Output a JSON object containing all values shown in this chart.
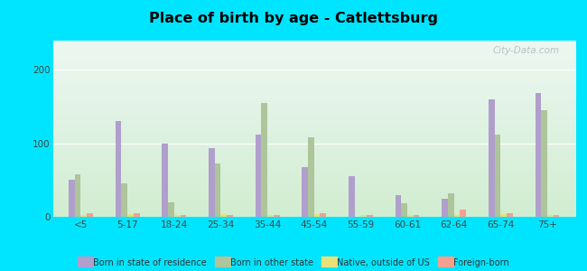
{
  "title": "Place of birth by age - Catlettsburg",
  "categories": [
    "<5",
    "5-17",
    "18-24",
    "25-34",
    "35-44",
    "45-54",
    "55-59",
    "60-61",
    "62-64",
    "65-74",
    "75+"
  ],
  "series": {
    "Born in state of residence": [
      50,
      130,
      100,
      93,
      112,
      68,
      55,
      30,
      25,
      160,
      168
    ],
    "Born in other state": [
      58,
      45,
      20,
      73,
      155,
      108,
      0,
      18,
      32,
      112,
      145
    ],
    "Native, outside of US": [
      3,
      4,
      3,
      4,
      3,
      4,
      3,
      3,
      3,
      4,
      3
    ],
    "Foreign-born": [
      5,
      5,
      3,
      3,
      3,
      5,
      3,
      3,
      10,
      5,
      3
    ]
  },
  "colors": {
    "Born in state of residence": "#b09fcc",
    "Born in other state": "#aec49a",
    "Native, outside of US": "#e8e07a",
    "Foreign-born": "#f4a090"
  },
  "ylim": [
    0,
    240
  ],
  "yticks": [
    0,
    100,
    200
  ],
  "outer_background": "#00e5ff",
  "bar_width": 0.13,
  "watermark": "City-Data.com"
}
